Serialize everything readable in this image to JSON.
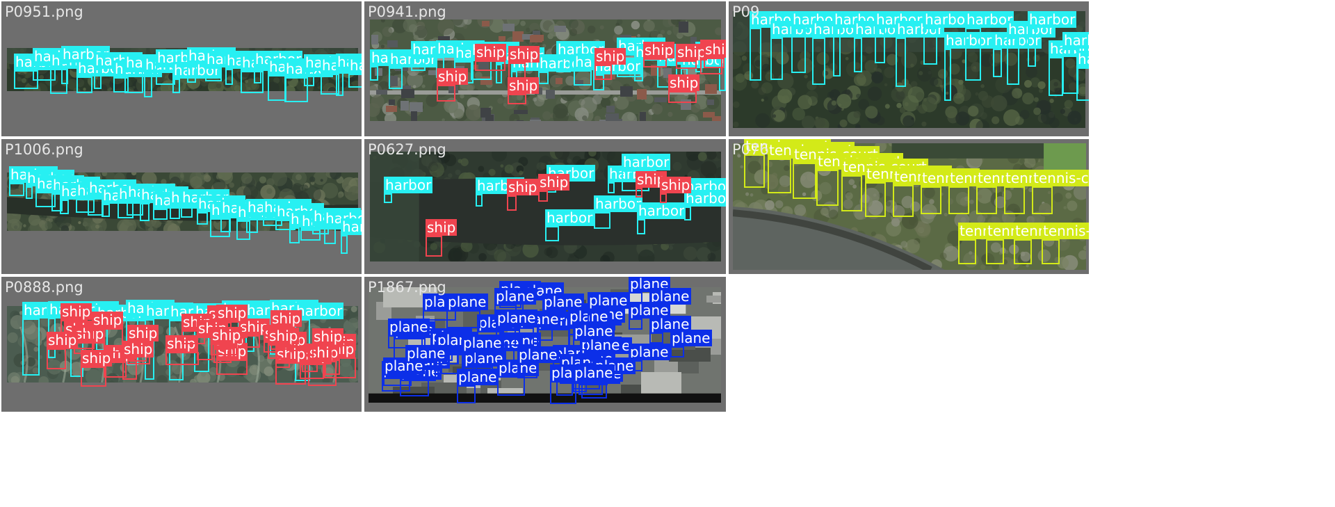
{
  "colors": {
    "harbor": "#27f0f2",
    "ship": "#f0444f",
    "plane": "#0c2fe8",
    "tennis-court": "#d3ea18",
    "tile_bg": "#6e6e6e",
    "filename_text": "#e6e6e6",
    "label_text_dark": "#1a1a1a",
    "label_text_light": "#ffffff"
  },
  "grid": {
    "tiles": [
      {
        "filename": "P0951.png",
        "labels_seen": [
          "harbor"
        ]
      },
      {
        "filename": "P0941.png",
        "labels_seen": [
          "harbor",
          "ship"
        ]
      },
      {
        "filename": "P09",
        "labels_seen": [
          "harbor"
        ]
      },
      {
        "filename": "P1006.png",
        "labels_seen": [
          "harbor"
        ]
      },
      {
        "filename": "P0627.png",
        "labels_seen": [
          "harbor",
          "ship"
        ]
      },
      {
        "filename": "P076",
        "labels_seen": [
          "tennis-court"
        ]
      },
      {
        "filename": "P0888.png",
        "labels_seen": [
          "harbor",
          "ship"
        ]
      },
      {
        "filename": "P1867.png",
        "labels_seen": [
          "plane"
        ]
      }
    ]
  },
  "label_texts": {
    "harbor": "harbor",
    "ship": "ship",
    "plane": "plane",
    "tennis-court": "tennis-court"
  }
}
